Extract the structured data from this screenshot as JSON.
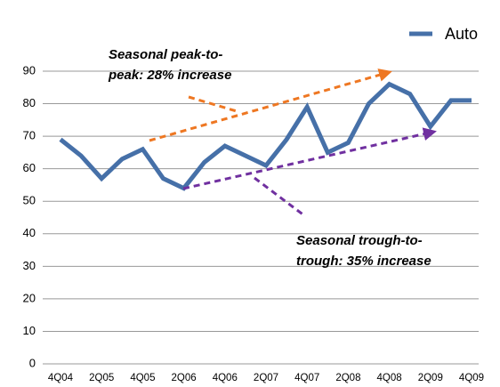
{
  "chart_data": {
    "type": "line",
    "categories": [
      "4Q04",
      null,
      "2Q05",
      null,
      "4Q05",
      null,
      "2Q06",
      null,
      "4Q06",
      null,
      "2Q07",
      null,
      "4Q07",
      null,
      "2Q08",
      null,
      "4Q08",
      null,
      "2Q09",
      null,
      "4Q09"
    ],
    "series": [
      {
        "name": "Auto",
        "color": "#4670a8",
        "values": [
          69,
          64,
          57,
          63,
          66,
          57,
          54,
          62,
          67,
          64,
          61,
          69,
          79,
          65,
          68,
          80,
          86,
          83,
          73,
          81,
          81
        ]
      }
    ],
    "ylim": [
      0,
      90
    ],
    "yticks": [
      0,
      10,
      20,
      30,
      40,
      50,
      60,
      70,
      80,
      90
    ],
    "grid": true,
    "legend": "top-right",
    "annotations": [
      {
        "lines": [
          "Seasonal peak-to-",
          "peak:  28% increase"
        ],
        "color": "#ee7722"
      },
      {
        "lines": [
          "Seasonal trough-to-",
          "trough:  35% increase"
        ],
        "color": "#7030a0"
      }
    ]
  }
}
